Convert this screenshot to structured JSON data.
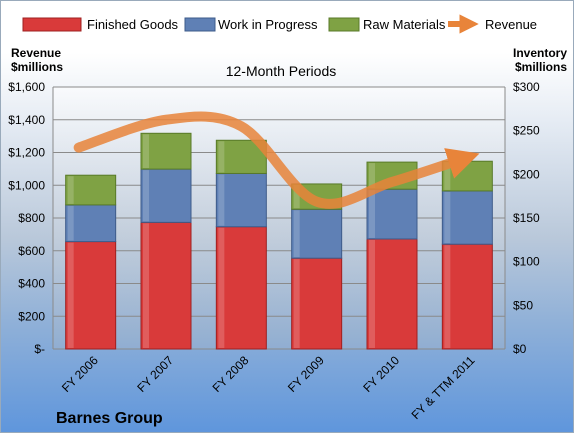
{
  "chart_data": {
    "type": "bar",
    "stacked": true,
    "title": "12-Month Periods",
    "categories": [
      "FY 2006",
      "FY 2007",
      "FY 2008",
      "FY 2009",
      "FY 2010",
      "FY & TTM 2011"
    ],
    "series": [
      {
        "name": "Finished Goods",
        "axis": "right",
        "color": "#d93a3a",
        "values": [
          123,
          145,
          140,
          104,
          126,
          120
        ]
      },
      {
        "name": "Work in Progress",
        "axis": "right",
        "color": "#5f80b5",
        "values": [
          42,
          61,
          61,
          56,
          57,
          61
        ]
      },
      {
        "name": "Raw Materials",
        "axis": "right",
        "color": "#7fa244",
        "values": [
          34,
          41,
          38,
          29,
          31,
          34
        ]
      },
      {
        "name": "Revenue",
        "axis": "left",
        "type": "line",
        "color": "#e8843a",
        "values": [
          1230,
          1400,
          1360,
          900,
          1020,
          1170
        ]
      }
    ],
    "left_axis": {
      "label": "Revenue $millions",
      "ylim": [
        0,
        1600
      ],
      "ticks": [
        "$-",
        "$200",
        "$400",
        "$600",
        "$800",
        "$1,000",
        "$1,200",
        "$1,400",
        "$1,600"
      ]
    },
    "right_axis": {
      "label": "Inventory $millions",
      "ylim": [
        0,
        300
      ],
      "ticks": [
        "$0",
        "$50",
        "$100",
        "$150",
        "$200",
        "$250",
        "$300"
      ]
    },
    "grid": true,
    "legend_position": "top",
    "company": "Barnes Group"
  }
}
